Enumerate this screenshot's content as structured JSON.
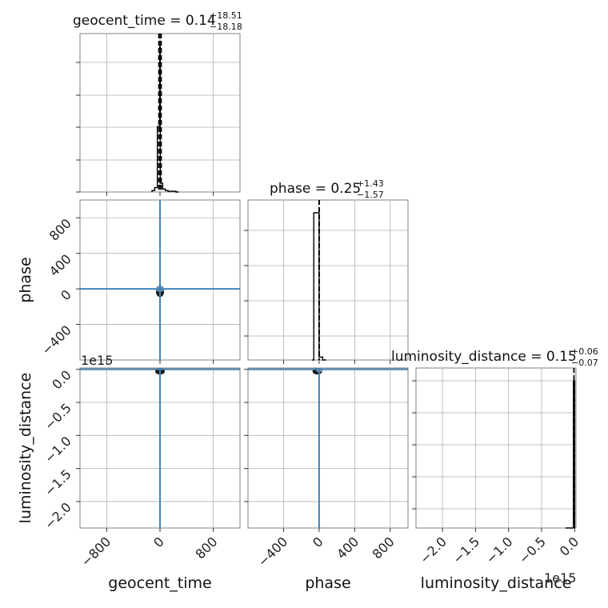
{
  "colors": {
    "truth": "#4682b4",
    "histogram": "#000000",
    "frame": "#808080",
    "grid": "#b0b0b0"
  },
  "offset_text": {
    "luminosity_distance_y": "1e15",
    "luminosity_distance_x": "1e15"
  },
  "chart_data": {
    "type": "corner",
    "grid": true,
    "parameters": [
      "geocent_time",
      "phase",
      "luminosity_distance"
    ],
    "titles": [
      {
        "param": "geocent_time",
        "median": "0.14",
        "plus": "+18.51",
        "minus": "−18.18"
      },
      {
        "param": "phase",
        "median": "0.25",
        "plus": "+1.43",
        "minus": "−1.57"
      },
      {
        "param": "luminosity_distance",
        "median": "0.15",
        "plus": "+0.06",
        "minus": "−0.07"
      }
    ],
    "axis_labels": {
      "x": [
        "geocent_time",
        "phase",
        "luminosity_distance"
      ],
      "y": [
        "phase",
        "luminosity_distance"
      ]
    },
    "ranges": {
      "geocent_time": [
        -1200,
        1200
      ],
      "phase": [
        -800,
        1000
      ],
      "luminosity_distance": [
        -2.4,
        0.02
      ]
    },
    "ticks": {
      "geocent_time": {
        "values": [
          -800,
          0,
          800
        ],
        "labels": [
          "−800",
          "0",
          "800"
        ]
      },
      "phase_x": {
        "values": [
          -400,
          0,
          400,
          800
        ],
        "labels": [
          "−400",
          "0",
          "400",
          "800"
        ]
      },
      "phase_y": {
        "values": [
          -400,
          0,
          400,
          800
        ],
        "labels": [
          "−400",
          "0",
          "400",
          "800"
        ]
      },
      "luminosity_distance": {
        "values": [
          -2.0,
          -1.5,
          -1.0,
          -0.5,
          0.0
        ],
        "labels": [
          "−2.0",
          "−1.5",
          "−1.0",
          "−0.5",
          "0.0"
        ]
      }
    },
    "truths": {
      "geocent_time": 0,
      "phase": 0,
      "luminosity_distance": 0
    },
    "quantile_lines": {
      "geocent_time": [
        -18.18,
        0.14,
        18.51
      ],
      "phase": [
        -1.57,
        0.25,
        1.43
      ],
      "luminosity_distance": [
        0.0
      ]
    },
    "histograms": {
      "geocent_time": {
        "edges": [
          -120,
          -80,
          -40,
          -4,
          4,
          40,
          80,
          120,
          160,
          200,
          240,
          280
        ],
        "heights": [
          0.01,
          0.03,
          0.45,
          1.0,
          0.06,
          0.02,
          0.01,
          0.005,
          0.005,
          0.005,
          0.0
        ]
      },
      "phase": {
        "edges": [
          -80,
          -60,
          -40,
          -20,
          0,
          20,
          40,
          60,
          80
        ],
        "heights": [
          0.0,
          1.0,
          1.0,
          1.0,
          0.02,
          0.02,
          0.0,
          0.0
        ]
      },
      "luminosity_distance": {
        "edges": [
          -0.14,
          -0.1,
          -0.06,
          -0.02,
          0.0
        ],
        "heights": [
          0.0,
          0.0,
          0.0,
          1.0
        ]
      }
    }
  }
}
